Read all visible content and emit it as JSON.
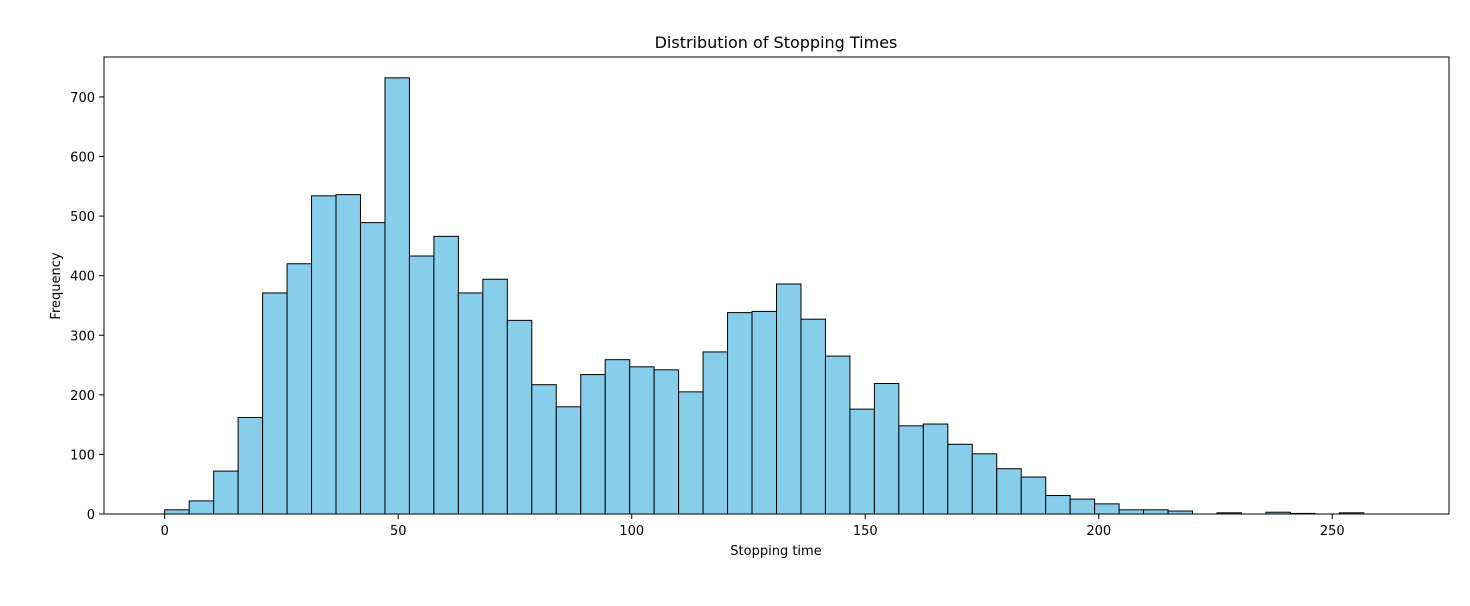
{
  "chart_data": {
    "type": "bar",
    "title": "Distribution of Stopping Times",
    "xlabel": "Stopping time",
    "ylabel": "Frequency",
    "xlim": [
      -13,
      275
    ],
    "ylim": [
      0,
      767
    ],
    "xticks": [
      0,
      50,
      100,
      150,
      200,
      250
    ],
    "yticks": [
      0,
      100,
      200,
      300,
      400,
      500,
      600,
      700
    ],
    "bin_width": 5.24,
    "bin_start": 0,
    "bar_color": "#87ceeb",
    "edge_color": "#000000",
    "grid": false,
    "values": [
      7,
      22,
      72,
      162,
      371,
      420,
      534,
      536,
      489,
      732,
      433,
      466,
      371,
      394,
      325,
      217,
      180,
      234,
      259,
      247,
      242,
      205,
      272,
      338,
      340,
      386,
      327,
      265,
      176,
      219,
      148,
      151,
      117,
      101,
      76,
      62,
      31,
      25,
      17,
      7,
      7,
      5,
      0,
      2,
      0,
      3,
      1,
      0,
      2
    ]
  }
}
